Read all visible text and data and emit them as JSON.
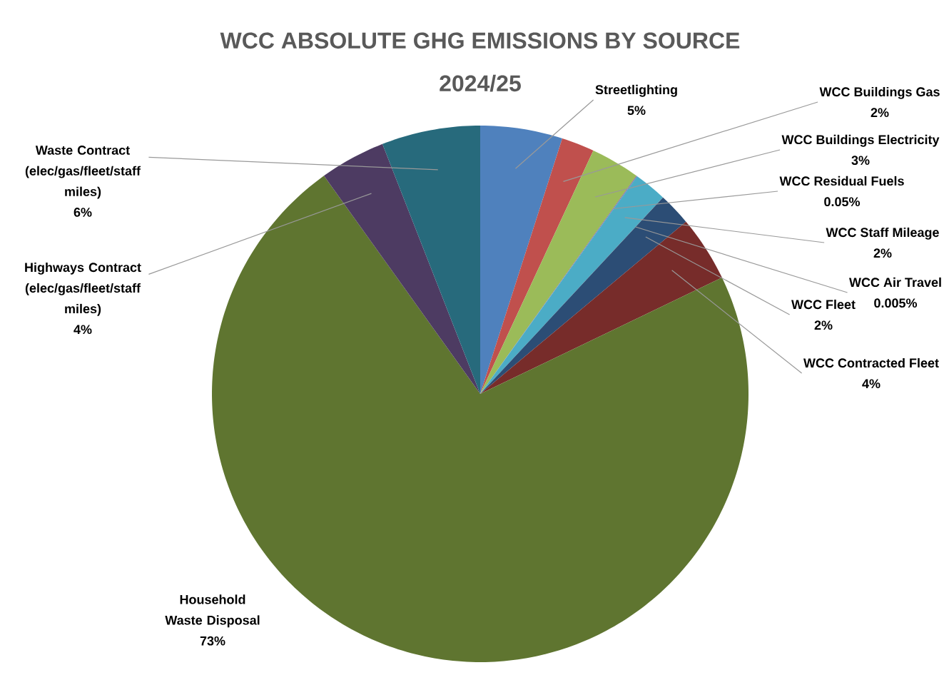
{
  "chart_data": {
    "type": "pie",
    "title": "WCC ABSOLUTE GHG EMISSIONS BY SOURCE 2024/25",
    "categories": [
      "Streetlighting",
      "WCC Buildings Gas",
      "WCC Buildings Electricity",
      "WCC Residual Fuels",
      "WCC Staff Mileage",
      "WCC Air Travel",
      "WCC Fleet",
      "WCC Contracted Fleet",
      "Household Waste Disposal",
      "Highways Contract (elec/gas/fleet/staff miles)",
      "Waste Contract (elec/gas/fleet/staff miles)"
    ],
    "values": [
      5,
      2,
      3,
      0.05,
      2,
      0.005,
      2,
      4,
      73,
      4,
      6
    ],
    "value_labels": [
      "5%",
      "2%",
      "3%",
      "0.05%",
      "2%",
      "0.005%",
      "2%",
      "4%",
      "73%",
      "4%",
      "6%"
    ],
    "colors": [
      "#4f81bd",
      "#c0504d",
      "#9bbb59",
      "#8064a2",
      "#4bacc6",
      "#f79646",
      "#2c4d75",
      "#772c2a",
      "#5f7530",
      "#4d3b62",
      "#276a7c"
    ]
  }
}
